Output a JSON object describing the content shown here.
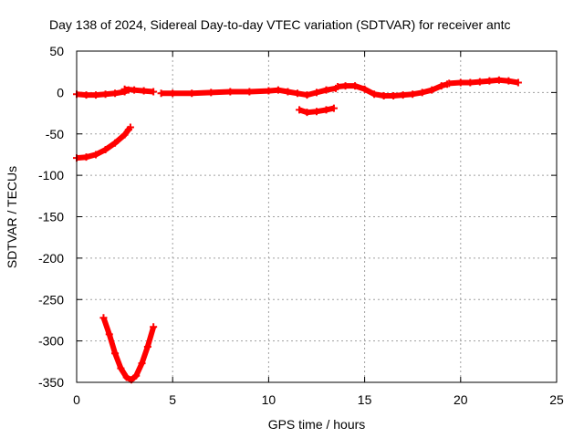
{
  "chart_data": {
    "type": "scatter",
    "title": "Day 138 of 2024, Sidereal Day-to-day VTEC variation (SDTVAR) for receiver antc",
    "xlabel": "GPS time / hours",
    "ylabel": "SDTVAR / TECUs",
    "xlim": [
      0,
      25
    ],
    "ylim": [
      -350,
      50
    ],
    "xticks": [
      0,
      5,
      10,
      15,
      20,
      25
    ],
    "yticks": [
      50,
      0,
      -50,
      -100,
      -150,
      -200,
      -250,
      -300,
      -350
    ],
    "xtick_labels": [
      "0",
      "5",
      "10",
      "15",
      "20",
      "25"
    ],
    "ytick_labels": [
      "50",
      "0",
      "-50",
      "-100",
      "-150",
      "-200",
      "-250",
      "-300",
      "-350"
    ],
    "grid": true,
    "series_color": "#ff0000",
    "series": [
      {
        "name": "segment-1",
        "points": [
          [
            0.0,
            -2
          ],
          [
            0.5,
            -3
          ],
          [
            1.0,
            -3
          ],
          [
            1.5,
            -2
          ],
          [
            2.0,
            -1
          ],
          [
            2.5,
            1
          ],
          [
            2.7,
            3
          ]
        ]
      },
      {
        "name": "segment-2",
        "points": [
          [
            2.5,
            4
          ],
          [
            3.0,
            3
          ],
          [
            3.5,
            2
          ],
          [
            4.0,
            1
          ]
        ]
      },
      {
        "name": "segment-3",
        "points": [
          [
            4.4,
            -1
          ],
          [
            5.0,
            -1
          ],
          [
            6.0,
            -1
          ],
          [
            7.0,
            0
          ],
          [
            8.0,
            1
          ],
          [
            9.0,
            1
          ],
          [
            10.0,
            2
          ],
          [
            10.5,
            3
          ],
          [
            11.0,
            1
          ],
          [
            11.5,
            -1
          ],
          [
            12.0,
            -3
          ],
          [
            12.5,
            0
          ],
          [
            13.0,
            3
          ],
          [
            13.5,
            5
          ]
        ]
      },
      {
        "name": "segment-4",
        "points": [
          [
            11.6,
            -21
          ],
          [
            12.0,
            -24
          ],
          [
            12.5,
            -23
          ],
          [
            13.0,
            -21
          ],
          [
            13.4,
            -19
          ]
        ]
      },
      {
        "name": "segment-5",
        "points": [
          [
            13.6,
            7
          ],
          [
            14.0,
            8
          ],
          [
            14.5,
            8
          ],
          [
            15.0,
            4
          ],
          [
            15.5,
            -2
          ],
          [
            16.0,
            -4
          ],
          [
            16.5,
            -4
          ],
          [
            17.0,
            -3
          ],
          [
            17.5,
            -2
          ],
          [
            18.0,
            0
          ],
          [
            18.5,
            3
          ],
          [
            19.0,
            8
          ],
          [
            19.3,
            10
          ]
        ]
      },
      {
        "name": "segment-6",
        "points": [
          [
            19.4,
            11
          ],
          [
            20.0,
            12
          ],
          [
            20.5,
            12
          ],
          [
            21.0,
            13
          ],
          [
            21.5,
            14
          ],
          [
            22.0,
            15
          ],
          [
            22.5,
            14
          ],
          [
            23.0,
            12
          ]
        ]
      },
      {
        "name": "segment-7",
        "points": [
          [
            0.0,
            -79
          ],
          [
            0.5,
            -78
          ],
          [
            1.0,
            -75
          ],
          [
            1.5,
            -69
          ],
          [
            2.0,
            -61
          ],
          [
            2.5,
            -51
          ],
          [
            2.7,
            -45
          ],
          [
            2.8,
            -42
          ]
        ]
      },
      {
        "name": "segment-8",
        "points": [
          [
            1.4,
            -272
          ],
          [
            1.7,
            -292
          ],
          [
            2.0,
            -315
          ],
          [
            2.3,
            -333
          ],
          [
            2.6,
            -344
          ],
          [
            2.85,
            -347
          ],
          [
            3.1,
            -342
          ],
          [
            3.4,
            -327
          ],
          [
            3.7,
            -307
          ],
          [
            4.0,
            -283
          ]
        ]
      }
    ]
  }
}
